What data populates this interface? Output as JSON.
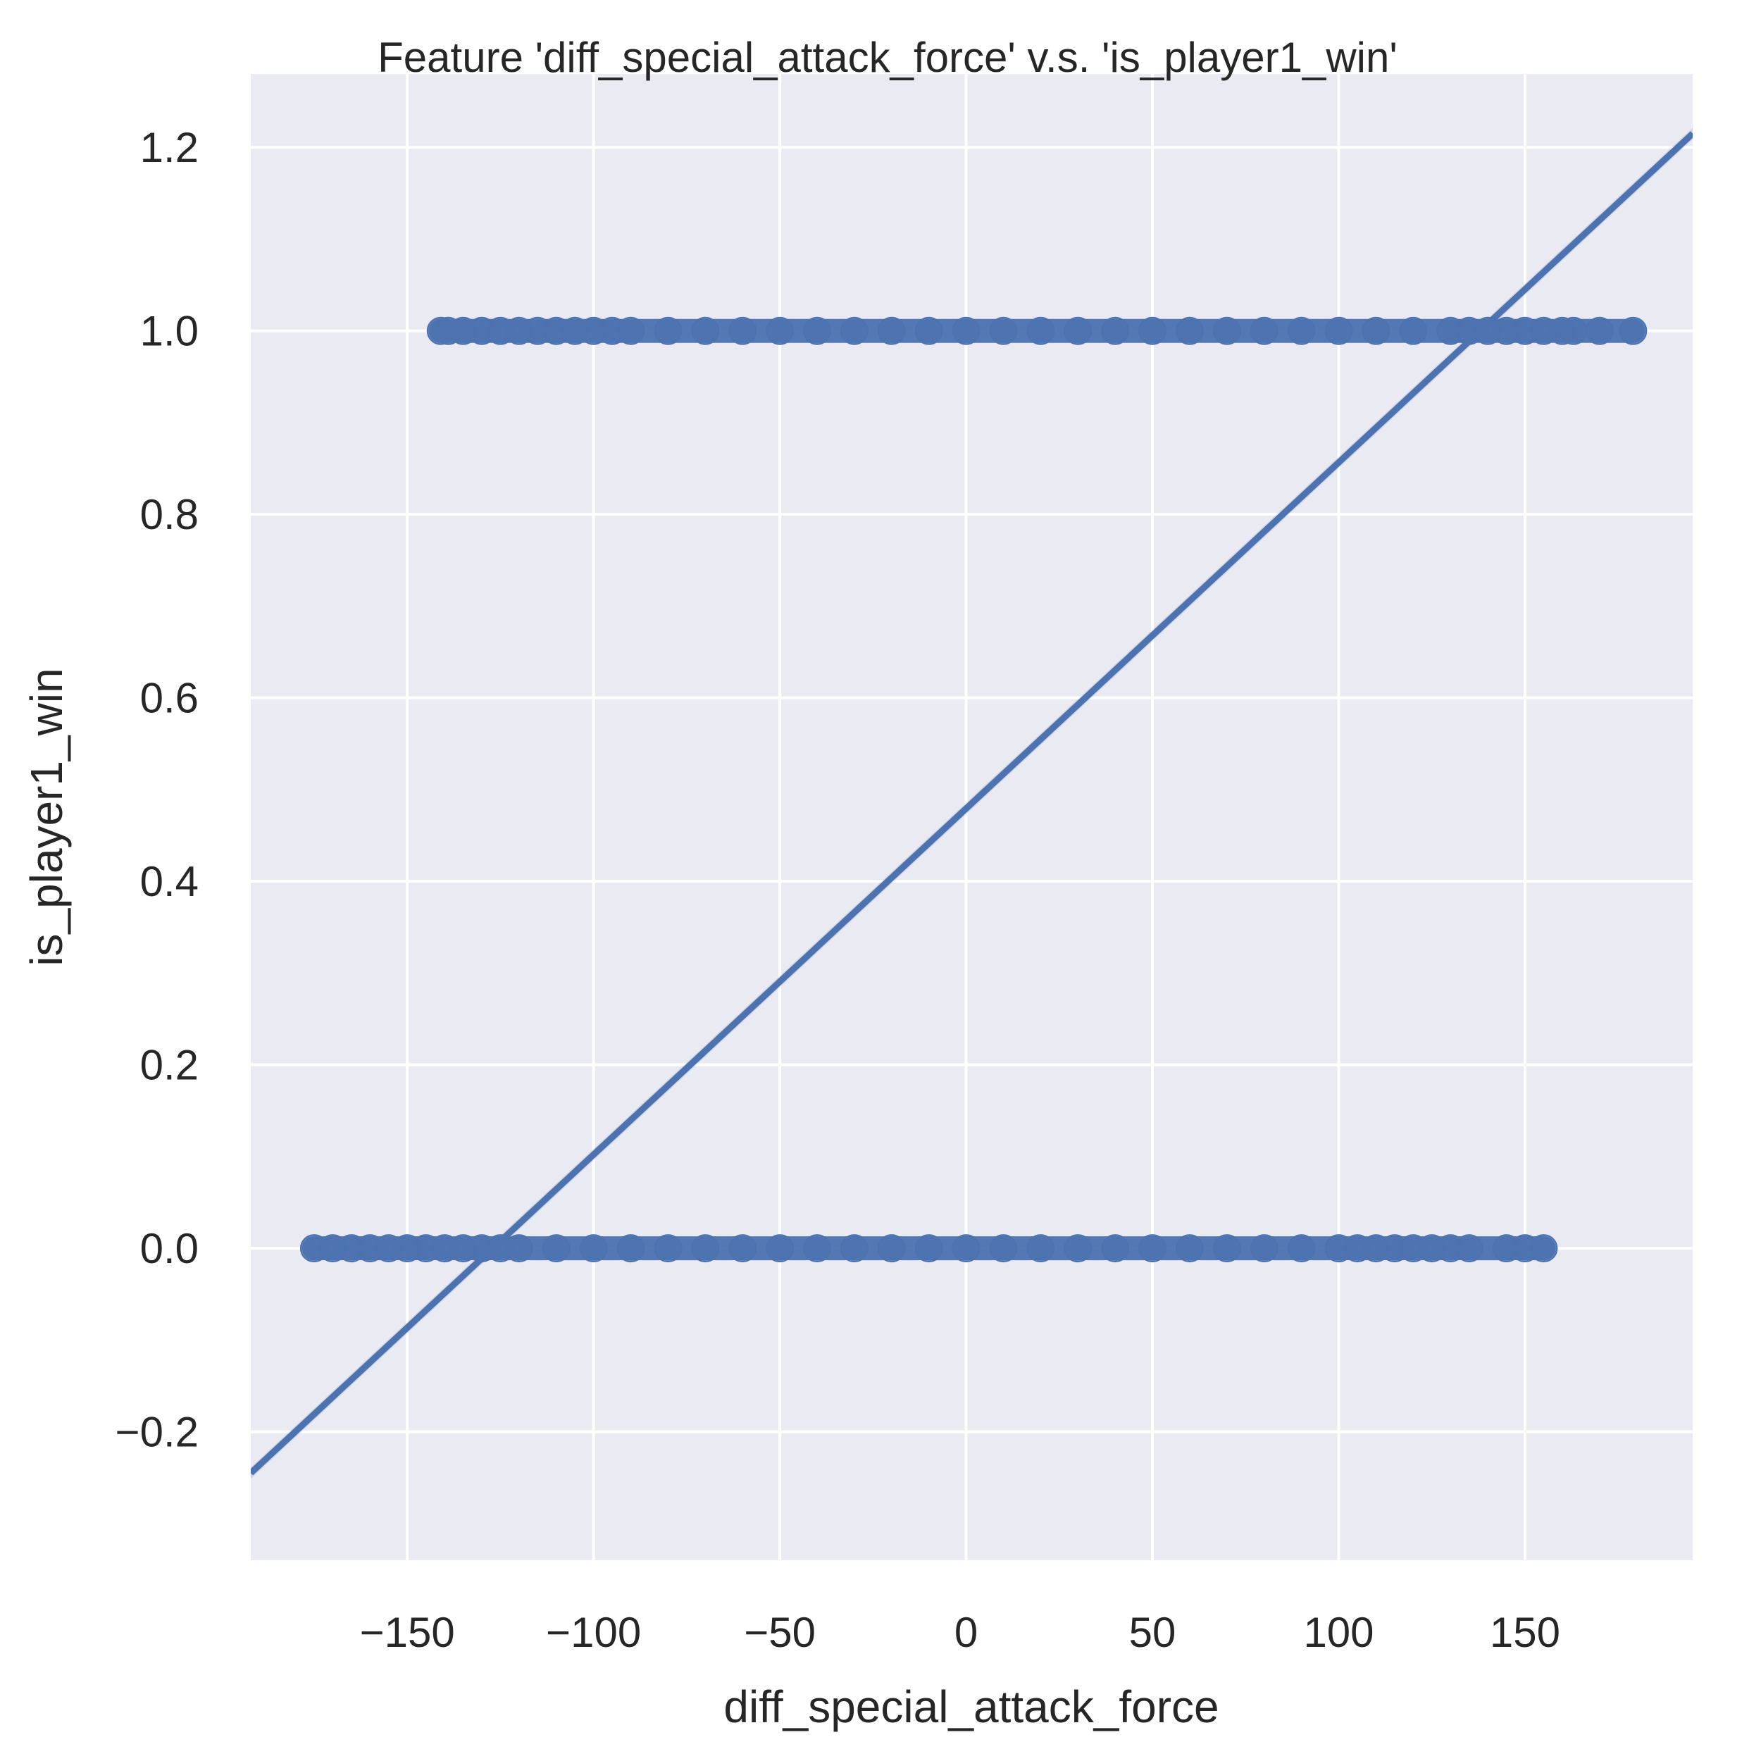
{
  "chart_data": {
    "type": "scatter",
    "title": "Feature 'diff_special_attack_force' v.s. 'is_player1_win'",
    "xlabel": "diff_special_attack_force",
    "ylabel": "is_player1_win",
    "xlim": [
      -192,
      195
    ],
    "ylim": [
      -0.34,
      1.28
    ],
    "x_ticks": [
      -150,
      -100,
      -50,
      0,
      50,
      100,
      150
    ],
    "x_tick_labels": [
      "−150",
      "−100",
      "−50",
      "0",
      "50",
      "100",
      "150"
    ],
    "y_ticks": [
      -0.2,
      0.0,
      0.2,
      0.4,
      0.6,
      0.8,
      1.0,
      1.2
    ],
    "y_tick_labels": [
      "−0.2",
      "0.0",
      "0.2",
      "0.4",
      "0.6",
      "0.8",
      "1.0",
      "1.2"
    ],
    "grid": true,
    "colors": {
      "background": "#eaeaf2",
      "grid": "#ffffff",
      "series": "#4c72b0"
    },
    "series": [
      {
        "kind": "points",
        "y": 1.0,
        "x_range": [
          -141,
          179
        ],
        "x_sampled": [
          -141,
          -139,
          -135,
          -130,
          -125,
          -120,
          -115,
          -110,
          -105,
          -100,
          -95,
          -90,
          -80,
          -70,
          -60,
          -50,
          -40,
          -30,
          -20,
          -10,
          0,
          10,
          20,
          30,
          40,
          50,
          60,
          70,
          80,
          90,
          100,
          110,
          120,
          130,
          135,
          140,
          145,
          150,
          155,
          160,
          163,
          170,
          179
        ]
      },
      {
        "kind": "points",
        "y": 0.0,
        "x_range": [
          -175,
          155
        ],
        "x_sampled": [
          -175,
          -170,
          -165,
          -160,
          -155,
          -150,
          -145,
          -140,
          -135,
          -130,
          -125,
          -120,
          -110,
          -100,
          -90,
          -80,
          -70,
          -60,
          -50,
          -40,
          -30,
          -20,
          -10,
          0,
          10,
          20,
          30,
          40,
          50,
          60,
          70,
          80,
          90,
          100,
          105,
          110,
          115,
          120,
          125,
          130,
          135,
          145,
          150,
          155
        ]
      },
      {
        "kind": "regression-line",
        "x": [
          -192,
          195
        ],
        "y": [
          -0.245,
          1.215
        ]
      }
    ]
  }
}
